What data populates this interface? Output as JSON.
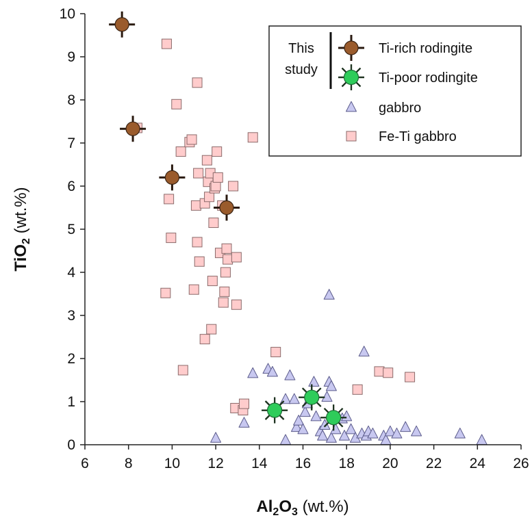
{
  "chart_data": {
    "type": "scatter",
    "xlabel": {
      "main": "Al",
      "sub1": "2",
      "mid": "O",
      "sub2": "3",
      "unit": " (wt.%)"
    },
    "ylabel": {
      "main": "TiO",
      "sub": "2",
      "unit": " (wt.%)"
    },
    "xlim": [
      6,
      26
    ],
    "ylim": [
      0,
      10
    ],
    "xticks": [
      "6",
      "8",
      "10",
      "12",
      "14",
      "16",
      "18",
      "20",
      "22",
      "24",
      "26"
    ],
    "yticks": [
      "0",
      "1",
      "2",
      "3",
      "4",
      "5",
      "6",
      "7",
      "8",
      "9",
      "10"
    ],
    "grid": false,
    "legend": {
      "position": "top-right",
      "group_label_line1": "This",
      "group_label_line2": "study"
    },
    "series": [
      {
        "name": "Ti-rich rodingite",
        "marker": "circle-cross",
        "color": "#9A5B2C",
        "points": [
          [
            7.7,
            9.75
          ],
          [
            8.2,
            7.33
          ],
          [
            10.0,
            6.2
          ],
          [
            12.5,
            5.5
          ]
        ]
      },
      {
        "name": "Ti-poor rodingite",
        "marker": "star-circle",
        "color": "#2ECC5A",
        "points": [
          [
            14.7,
            0.8
          ],
          [
            16.4,
            1.1
          ],
          [
            17.4,
            0.63
          ]
        ]
      },
      {
        "name": "gabbro",
        "marker": "triangle",
        "color": "#C8C8F0",
        "points": [
          [
            12.0,
            0.15
          ],
          [
            13.3,
            0.5
          ],
          [
            13.7,
            1.65
          ],
          [
            14.4,
            1.75
          ],
          [
            14.6,
            1.68
          ],
          [
            15.2,
            0.1
          ],
          [
            15.2,
            1.05
          ],
          [
            15.4,
            1.6
          ],
          [
            15.6,
            1.05
          ],
          [
            15.7,
            0.4
          ],
          [
            15.8,
            0.55
          ],
          [
            16.0,
            0.35
          ],
          [
            16.1,
            0.75
          ],
          [
            16.2,
            0.95
          ],
          [
            16.5,
            1.45
          ],
          [
            16.6,
            0.65
          ],
          [
            16.8,
            0.3
          ],
          [
            16.9,
            0.2
          ],
          [
            17.0,
            0.45
          ],
          [
            17.1,
            1.1
          ],
          [
            17.2,
            1.45
          ],
          [
            17.2,
            3.47
          ],
          [
            17.3,
            1.35
          ],
          [
            17.3,
            0.15
          ],
          [
            17.5,
            0.35
          ],
          [
            17.8,
            0.6
          ],
          [
            17.9,
            0.2
          ],
          [
            18.0,
            0.65
          ],
          [
            18.2,
            0.35
          ],
          [
            18.4,
            0.15
          ],
          [
            18.7,
            0.25
          ],
          [
            18.8,
            2.15
          ],
          [
            18.9,
            0.2
          ],
          [
            19.0,
            0.3
          ],
          [
            19.2,
            0.25
          ],
          [
            19.7,
            0.2
          ],
          [
            19.8,
            0.1
          ],
          [
            20.0,
            0.3
          ],
          [
            20.3,
            0.25
          ],
          [
            20.7,
            0.4
          ],
          [
            21.2,
            0.3
          ],
          [
            23.2,
            0.25
          ],
          [
            24.2,
            0.1
          ]
        ]
      },
      {
        "name": "Fe-Ti gabbro",
        "marker": "square",
        "color": "#FFCCCC",
        "points": [
          [
            8.4,
            7.35
          ],
          [
            9.7,
            3.52
          ],
          [
            9.75,
            9.3
          ],
          [
            9.85,
            5.7
          ],
          [
            9.95,
            4.8
          ],
          [
            10.2,
            7.9
          ],
          [
            10.4,
            6.8
          ],
          [
            10.5,
            1.73
          ],
          [
            10.8,
            7.02
          ],
          [
            10.9,
            7.08
          ],
          [
            11.0,
            3.6
          ],
          [
            11.1,
            5.55
          ],
          [
            11.15,
            8.4
          ],
          [
            11.15,
            4.7
          ],
          [
            11.2,
            6.3
          ],
          [
            11.25,
            4.25
          ],
          [
            11.5,
            2.45
          ],
          [
            11.5,
            5.6
          ],
          [
            11.6,
            6.6
          ],
          [
            11.65,
            6.1
          ],
          [
            11.7,
            5.75
          ],
          [
            11.75,
            6.3
          ],
          [
            11.8,
            2.68
          ],
          [
            11.85,
            3.8
          ],
          [
            11.9,
            5.15
          ],
          [
            11.95,
            5.95
          ],
          [
            12.0,
            6.0
          ],
          [
            12.05,
            6.8
          ],
          [
            12.1,
            6.2
          ],
          [
            12.2,
            4.45
          ],
          [
            12.3,
            5.55
          ],
          [
            12.35,
            3.3
          ],
          [
            12.4,
            3.55
          ],
          [
            12.45,
            4.0
          ],
          [
            12.5,
            4.55
          ],
          [
            12.55,
            4.3
          ],
          [
            12.8,
            6.0
          ],
          [
            12.9,
            0.85
          ],
          [
            12.95,
            3.25
          ],
          [
            12.95,
            4.35
          ],
          [
            13.25,
            0.8
          ],
          [
            13.3,
            0.95
          ],
          [
            13.7,
            7.13
          ],
          [
            14.75,
            2.15
          ],
          [
            18.5,
            1.28
          ],
          [
            19.5,
            1.7
          ],
          [
            19.9,
            1.67
          ],
          [
            20.9,
            1.57
          ]
        ]
      }
    ]
  }
}
